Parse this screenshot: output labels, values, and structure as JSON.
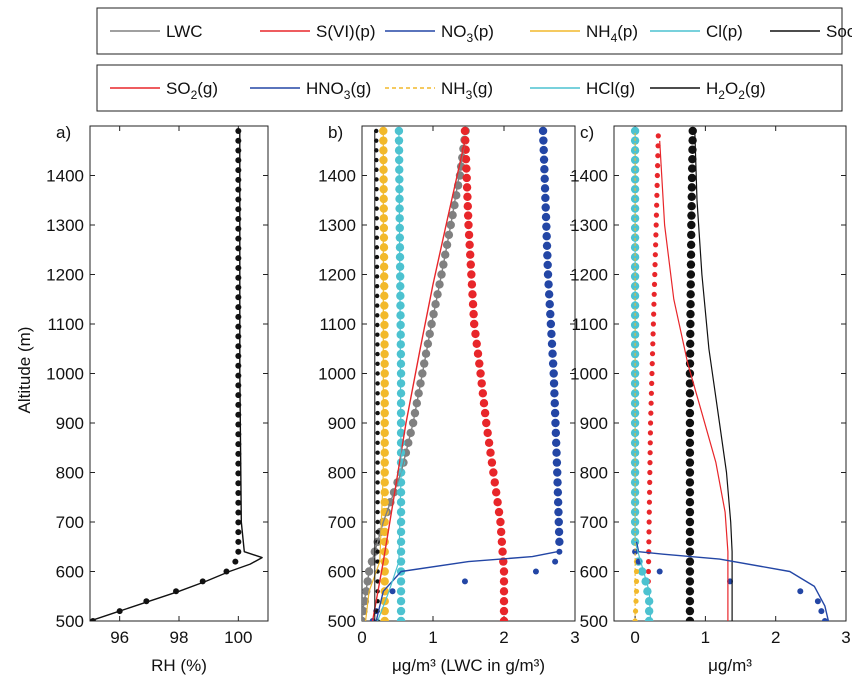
{
  "legends": [
    {
      "entries": [
        {
          "label": "LWC",
          "sub": null,
          "tail": "",
          "color": "#808080",
          "style": "solid"
        },
        {
          "label": "S(VI)(p)",
          "sub": null,
          "tail": "",
          "color": "#e8262a",
          "style": "solid"
        },
        {
          "label": "NO",
          "sub": "3",
          "tail": "(p)",
          "color": "#2346a5",
          "style": "solid"
        },
        {
          "label": "NH",
          "sub": "4",
          "tail": "(p)",
          "color": "#f2b92b",
          "style": "solid"
        },
        {
          "label": "Cl(p)",
          "sub": null,
          "tail": "",
          "color": "#4cc2d0",
          "style": "solid"
        },
        {
          "label": "Soot",
          "sub": null,
          "tail": "",
          "color": "#111111",
          "style": "solid"
        }
      ]
    },
    {
      "entries": [
        {
          "label": "SO",
          "sub": "2",
          "tail": "(g)",
          "color": "#e8262a",
          "style": "solid"
        },
        {
          "label": "HNO",
          "sub": "3",
          "tail": "(g)",
          "color": "#2346a5",
          "style": "solid"
        },
        {
          "label": "NH",
          "sub": "3",
          "tail": "(g)",
          "color": "#f2b92b",
          "style": "dashed"
        },
        {
          "label": "HCl(g)",
          "sub": null,
          "tail": "",
          "color": "#4cc2d0",
          "style": "solid"
        },
        {
          "label": "H",
          "sub": "2",
          "tail": "O",
          "sub2": "2",
          "tail2": "(g)",
          "color": "#111111",
          "style": "solid"
        }
      ]
    }
  ],
  "ylabel": "Altitude (m)",
  "chart_data": [
    {
      "type": "line",
      "panel": "a)",
      "xlabel": "RH (%)",
      "xlim": [
        95,
        101
      ],
      "xticks": [
        96,
        98,
        100
      ],
      "ylim": [
        500,
        1500
      ],
      "yticks": [
        500,
        600,
        700,
        800,
        900,
        1000,
        1100,
        1200,
        1300,
        1400
      ],
      "series": [
        {
          "marker": "line",
          "color": "#111111",
          "points": [
            [
              95,
              500
            ],
            [
              96,
              520
            ],
            [
              97,
              540
            ],
            [
              98,
              560
            ],
            [
              98.9,
              580
            ],
            [
              99.7,
              600
            ],
            [
              100.4,
              615
            ],
            [
              100.8,
              628
            ],
            [
              100.2,
              640
            ],
            [
              100.1,
              700
            ],
            [
              100.05,
              1000
            ],
            [
              100.05,
              1490
            ]
          ]
        },
        {
          "marker": "dots",
          "color": "#111111",
          "size": 3,
          "points": [
            [
              95.1,
              500
            ],
            [
              96,
              520
            ],
            [
              96.9,
              540
            ],
            [
              97.9,
              560
            ],
            [
              98.8,
              580
            ],
            [
              99.6,
              600
            ],
            [
              99.9,
              620
            ],
            [
              100,
              640
            ],
            [
              100,
              1490
            ]
          ]
        }
      ]
    },
    {
      "type": "line",
      "panel": "b)",
      "xlabel": "μg/m³ (LWC in g/m³)",
      "xlim": [
        0,
        3
      ],
      "xticks": [
        0,
        1,
        2,
        3
      ],
      "ylim": [
        500,
        1500
      ],
      "yticks": [
        500,
        600,
        700,
        800,
        900,
        1000,
        1100,
        1200,
        1300,
        1400
      ],
      "series": [
        {
          "name": "LWC",
          "marker": "dots",
          "color": "#808080",
          "size": 4.2,
          "points": [
            [
              0,
              500
            ],
            [
              0.1,
              600
            ],
            [
              0.3,
              700
            ],
            [
              0.55,
              800
            ],
            [
              0.72,
              900
            ],
            [
              0.85,
              1000
            ],
            [
              0.98,
              1100
            ],
            [
              1.12,
              1200
            ],
            [
              1.25,
              1300
            ],
            [
              1.38,
              1400
            ],
            [
              1.46,
              1490
            ]
          ]
        },
        {
          "name": "S(VI)(p)",
          "marker": "dots",
          "color": "#e8262a",
          "size": 4.2,
          "points": [
            [
              2.0,
              500
            ],
            [
              2.0,
              600
            ],
            [
              1.95,
              700
            ],
            [
              1.85,
              800
            ],
            [
              1.75,
              900
            ],
            [
              1.67,
              1000
            ],
            [
              1.58,
              1100
            ],
            [
              1.5,
              1300
            ],
            [
              1.45,
              1490
            ]
          ]
        },
        {
          "name": "NO3(p)",
          "marker": "dots",
          "color": "#2346a5",
          "size": 4.2,
          "points": [
            [
              2.78,
              660
            ],
            [
              2.75,
              800
            ],
            [
              2.7,
              1000
            ],
            [
              2.62,
              1200
            ],
            [
              2.55,
              1490
            ]
          ]
        },
        {
          "name": "NO3(p) low",
          "marker": "dots",
          "color": "#2346a5",
          "size": 3,
          "points": [
            [
              0.15,
              500
            ],
            [
              0.2,
              520
            ],
            [
              0.3,
              540
            ],
            [
              0.43,
              560
            ],
            [
              1.45,
              580
            ],
            [
              2.45,
              600
            ],
            [
              2.72,
              620
            ],
            [
              2.78,
              640
            ]
          ]
        },
        {
          "name": "NH4(p)",
          "marker": "dots",
          "color": "#f2b92b",
          "size": 4.2,
          "points": [
            [
              0.32,
              500
            ],
            [
              0.32,
              1000
            ],
            [
              0.3,
              1490
            ]
          ]
        },
        {
          "name": "Cl(p)",
          "marker": "dots",
          "color": "#4cc2d0",
          "size": 4.2,
          "points": [
            [
              0.55,
              500
            ],
            [
              0.55,
              1000
            ],
            [
              0.52,
              1490
            ]
          ]
        },
        {
          "name": "Soot",
          "marker": "dots",
          "color": "#111111",
          "size": 2.2,
          "points": [
            [
              0.22,
              500
            ],
            [
              0.22,
              1000
            ],
            [
              0.2,
              1490
            ]
          ]
        },
        {
          "name": "LWC line",
          "marker": "line",
          "color": "#808080",
          "width": 1.4,
          "points": [
            [
              0,
              510
            ],
            [
              0.1,
              600
            ],
            [
              0.3,
              700
            ],
            [
              0.55,
              800
            ],
            [
              0.72,
              900
            ],
            [
              0.85,
              1000
            ],
            [
              0.98,
              1100
            ],
            [
              1.12,
              1200
            ],
            [
              1.25,
              1300
            ],
            [
              1.45,
              1470
            ]
          ]
        },
        {
          "name": "SO2 line",
          "marker": "line",
          "color": "#e8262a",
          "width": 1.4,
          "points": [
            [
              0.15,
              500
            ],
            [
              0.3,
              620
            ],
            [
              0.45,
              750
            ],
            [
              0.62,
              900
            ],
            [
              0.82,
              1050
            ],
            [
              1.0,
              1180
            ],
            [
              1.2,
              1310
            ],
            [
              1.45,
              1470
            ]
          ]
        },
        {
          "name": "HNO3 line",
          "marker": "line",
          "color": "#2346a5",
          "width": 1.4,
          "points": [
            [
              0.2,
              500
            ],
            [
              0.3,
              560
            ],
            [
              0.55,
              600
            ],
            [
              1.5,
              620
            ],
            [
              2.4,
              630
            ],
            [
              2.75,
              640
            ]
          ]
        },
        {
          "name": "NH3 line",
          "marker": "line",
          "color": "#f2b92b",
          "width": 1.2,
          "points": [
            [
              0.05,
              500
            ],
            [
              0.1,
              560
            ],
            [
              0.25,
              620
            ],
            [
              0.3,
              800
            ],
            [
              0.3,
              1490
            ]
          ]
        },
        {
          "name": "HCl line",
          "marker": "line",
          "color": "#4cc2d0",
          "width": 1.2,
          "points": [
            [
              0.22,
              500
            ],
            [
              0.38,
              560
            ],
            [
              0.52,
              620
            ],
            [
              0.55,
              800
            ],
            [
              0.52,
              1490
            ]
          ]
        },
        {
          "name": "H2O2 line",
          "marker": "line",
          "color": "#111111",
          "width": 1.0,
          "points": [
            [
              0.18,
              500
            ],
            [
              0.18,
              1000
            ],
            [
              0.18,
              1490
            ]
          ]
        }
      ]
    },
    {
      "type": "line",
      "panel": "c)",
      "xlabel": "μg/m³",
      "xlim": [
        -0.3,
        3
      ],
      "xticks": [
        0,
        1,
        2,
        3
      ],
      "ylim": [
        500,
        1500
      ],
      "yticks": [
        500,
        600,
        700,
        800,
        900,
        1000,
        1100,
        1200,
        1300,
        1400
      ],
      "series": [
        {
          "name": "H2O2(g)",
          "marker": "dots",
          "color": "#111111",
          "size": 4.2,
          "points": [
            [
              0.78,
              500
            ],
            [
              0.78,
              600
            ],
            [
              0.78,
              800
            ],
            [
              0.78,
              1000
            ],
            [
              0.8,
              1300
            ],
            [
              0.82,
              1490
            ]
          ]
        },
        {
          "name": "SO2(g)",
          "marker": "dots",
          "color": "#e8262a",
          "size": 2.6,
          "points": [
            [
              0.18,
              500
            ],
            [
              0.2,
              700
            ],
            [
              0.22,
              900
            ],
            [
              0.26,
              1100
            ],
            [
              0.3,
              1300
            ],
            [
              0.33,
              1480
            ]
          ]
        },
        {
          "name": "HCl(g)",
          "marker": "dots",
          "color": "#4cc2d0",
          "size": 4.2,
          "points": [
            [
              0.0,
              660
            ],
            [
              0.0,
              1000
            ],
            [
              0.0,
              1490
            ]
          ]
        },
        {
          "name": "HCl(g) low",
          "marker": "dots",
          "color": "#4cc2d0",
          "size": 4.2,
          "points": [
            [
              0.2,
              500
            ],
            [
              0.2,
              540
            ],
            [
              0.15,
              580
            ],
            [
              0.05,
              620
            ]
          ]
        },
        {
          "name": "NH3(g)",
          "marker": "dots",
          "color": "#f2b92b",
          "size": 2.6,
          "points": [
            [
              0.0,
              500
            ],
            [
              0.02,
              560
            ],
            [
              0.02,
              620
            ]
          ]
        },
        {
          "name": "HNO3(g) dots",
          "marker": "dots",
          "color": "#2346a5",
          "size": 3,
          "points": [
            [
              2.7,
              500
            ],
            [
              2.65,
              520
            ],
            [
              2.6,
              540
            ],
            [
              2.35,
              560
            ],
            [
              1.35,
              580
            ],
            [
              0.35,
              600
            ],
            [
              0.05,
              620
            ],
            [
              0.0,
              640
            ]
          ]
        },
        {
          "name": "H2O2 line",
          "marker": "line",
          "color": "#111111",
          "width": 1.2,
          "points": [
            [
              1.38,
              500
            ],
            [
              1.38,
              640
            ],
            [
              1.36,
              700
            ],
            [
              1.3,
              800
            ],
            [
              1.2,
              900
            ],
            [
              1.05,
              1050
            ],
            [
              0.95,
              1200
            ],
            [
              0.88,
              1350
            ],
            [
              0.85,
              1490
            ]
          ]
        },
        {
          "name": "SO2 line",
          "marker": "line",
          "color": "#e8262a",
          "width": 1.2,
          "points": [
            [
              1.32,
              500
            ],
            [
              1.32,
              640
            ],
            [
              1.28,
              720
            ],
            [
              1.15,
              820
            ],
            [
              0.95,
              920
            ],
            [
              0.75,
              1020
            ],
            [
              0.55,
              1150
            ],
            [
              0.42,
              1300
            ],
            [
              0.35,
              1470
            ]
          ]
        },
        {
          "name": "HNO3 line",
          "marker": "line",
          "color": "#2346a5",
          "width": 1.4,
          "points": [
            [
              2.75,
              500
            ],
            [
              2.7,
              530
            ],
            [
              2.55,
              570
            ],
            [
              2.2,
              600
            ],
            [
              1.2,
              625
            ],
            [
              0.4,
              635
            ],
            [
              0.05,
              640
            ],
            [
              0.02,
              660
            ]
          ]
        },
        {
          "name": "HCl line",
          "marker": "line",
          "color": "#4cc2d0",
          "width": 1.2,
          "points": [
            [
              0.22,
              500
            ],
            [
              0.2,
              560
            ],
            [
              0.08,
              620
            ],
            [
              0.0,
              660
            ],
            [
              0.0,
              1490
            ]
          ]
        },
        {
          "name": "NH3 line",
          "marker": "line",
          "color": "#f2b92b",
          "width": 1.0,
          "dash": "3 2",
          "points": [
            [
              0.0,
              500
            ],
            [
              0.0,
              660
            ],
            [
              0.0,
              1490
            ]
          ]
        }
      ]
    }
  ]
}
